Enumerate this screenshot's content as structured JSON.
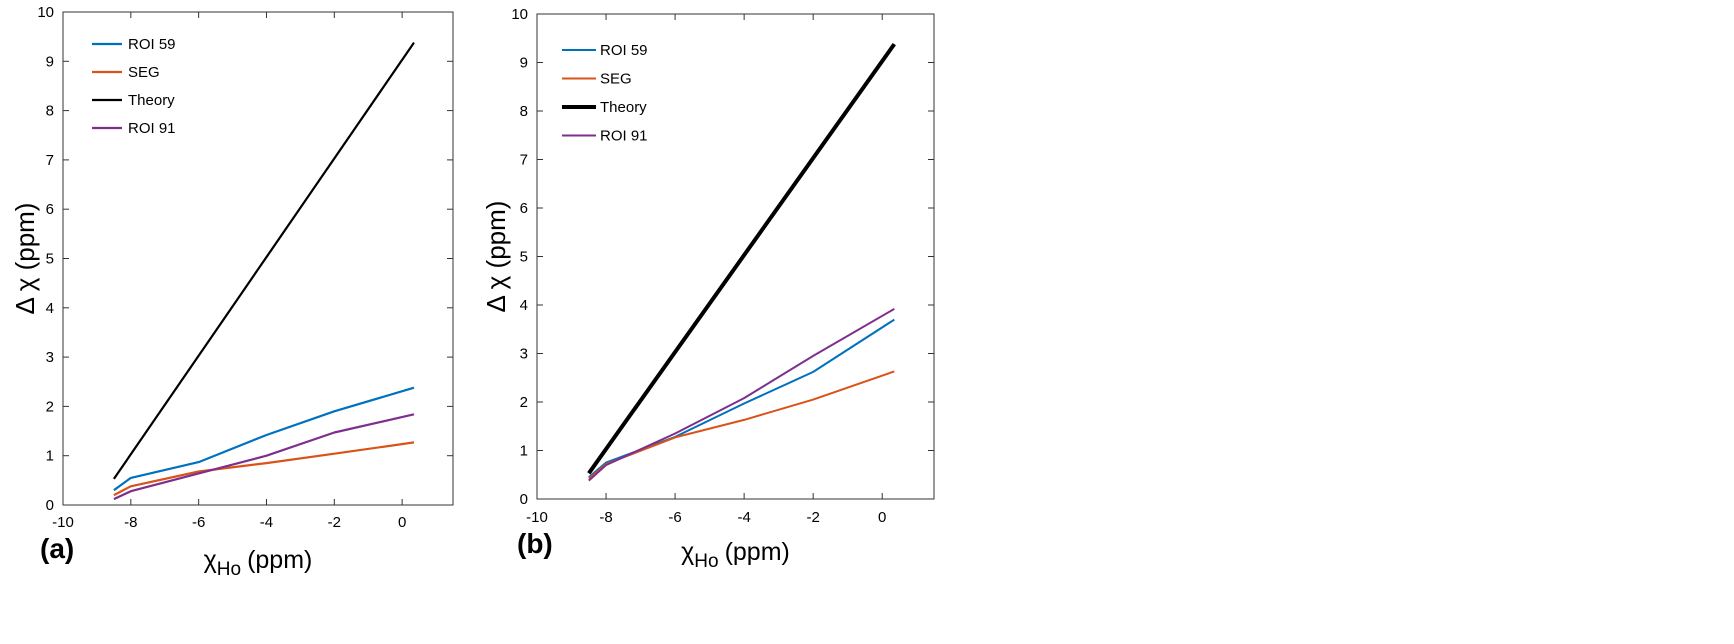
{
  "chart_data": [
    {
      "type": "line",
      "panel_label": "(a)",
      "xlabel": {
        "symbol": "χ",
        "subscript": "Ho",
        "unit": "(ppm)"
      },
      "ylabel": "Δ χ (ppm)",
      "xlim": [
        -10,
        1.5
      ],
      "ylim": [
        0,
        10
      ],
      "xticks": [
        -10,
        -8,
        -6,
        -4,
        -2,
        0
      ],
      "yticks": [
        0,
        1,
        2,
        3,
        4,
        5,
        6,
        7,
        8,
        9,
        10
      ],
      "legend_position": "top-left",
      "series": [
        {
          "name": "ROI 59",
          "color": "#0072BD",
          "width": 2.2,
          "x": [
            -8.5,
            -8,
            -6,
            -4,
            -2,
            0.35
          ],
          "y": [
            0.3,
            0.55,
            0.87,
            1.42,
            1.9,
            2.38
          ]
        },
        {
          "name": "SEG",
          "color": "#D95319",
          "width": 2.2,
          "x": [
            -8.5,
            -8,
            -6,
            -4,
            -2,
            0.35
          ],
          "y": [
            0.2,
            0.38,
            0.68,
            0.85,
            1.04,
            1.27
          ]
        },
        {
          "name": "Theory",
          "color": "#000000",
          "width": 2.2,
          "x": [
            -8.5,
            0.35
          ],
          "y": [
            0.53,
            9.38
          ]
        },
        {
          "name": "ROI 91",
          "color": "#7E2F8E",
          "width": 2.2,
          "x": [
            -8.5,
            -8,
            -6,
            -4,
            -2,
            0.35
          ],
          "y": [
            0.12,
            0.28,
            0.64,
            1.0,
            1.47,
            1.84
          ]
        }
      ]
    },
    {
      "type": "line",
      "panel_label": "(b)",
      "xlabel": {
        "symbol": "χ",
        "subscript": "Ho",
        "unit": "(ppm)"
      },
      "ylabel": "Δ χ (ppm)",
      "xlim": [
        -10,
        1.5
      ],
      "ylim": [
        0,
        10
      ],
      "xticks": [
        -10,
        -8,
        -6,
        -4,
        -2,
        0
      ],
      "yticks": [
        0,
        1,
        2,
        3,
        4,
        5,
        6,
        7,
        8,
        9,
        10
      ],
      "legend_position": "top-left",
      "series": [
        {
          "name": "ROI 59",
          "color": "#0072BD",
          "width": 2,
          "x": [
            -8.5,
            -8,
            -6,
            -4,
            -2,
            0.35
          ],
          "y": [
            0.45,
            0.75,
            1.28,
            1.97,
            2.62,
            3.7
          ]
        },
        {
          "name": "SEG",
          "color": "#D95319",
          "width": 2,
          "x": [
            -8.5,
            -8,
            -6,
            -4,
            -2,
            0.35
          ],
          "y": [
            0.42,
            0.72,
            1.27,
            1.63,
            2.05,
            2.63
          ]
        },
        {
          "name": "Theory",
          "color": "#000000",
          "width": 4,
          "x": [
            -8.5,
            0.35
          ],
          "y": [
            0.53,
            9.38
          ]
        },
        {
          "name": "ROI 91",
          "color": "#7E2F8E",
          "width": 2,
          "x": [
            -8.5,
            -8,
            -6,
            -4,
            -2,
            0.35
          ],
          "y": [
            0.38,
            0.7,
            1.35,
            2.08,
            2.95,
            3.92
          ]
        }
      ]
    }
  ]
}
